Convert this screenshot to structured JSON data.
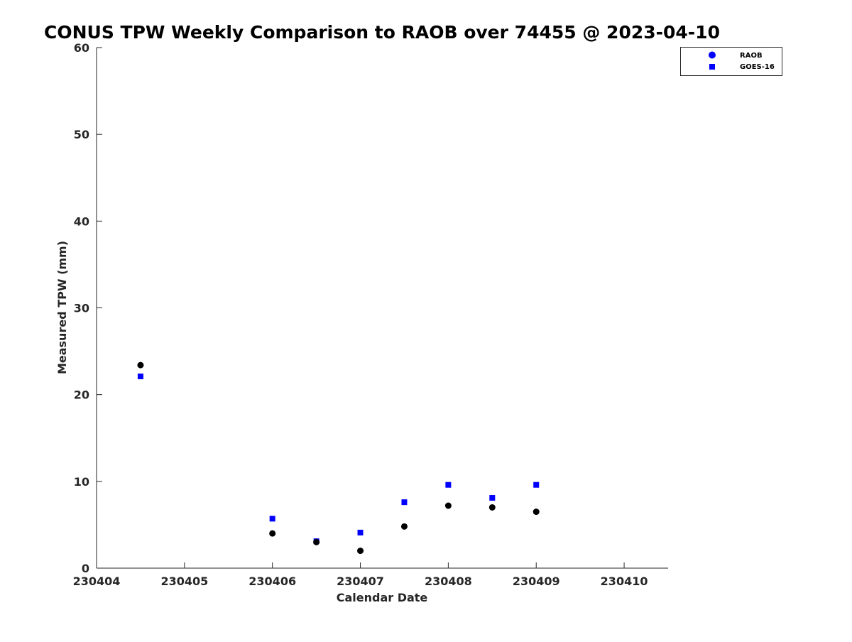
{
  "chart_data": {
    "type": "scatter",
    "title": "CONUS TPW Weekly Comparison to RAOB over 74455 @ 2023-04-10",
    "xlabel": "Calendar Date",
    "ylabel": "Measured TPW (mm)",
    "xlim": [
      "2023-04-04 00:00",
      "2023-04-10 12:00"
    ],
    "ylim": [
      0,
      60
    ],
    "xticks": [
      "2023-04-04",
      "2023-04-05",
      "2023-04-06",
      "2023-04-07",
      "2023-04-08",
      "2023-04-09",
      "2023-04-10"
    ],
    "xtick_labels": [
      "230404",
      "230405",
      "230406",
      "230407",
      "230408",
      "230409",
      "230410"
    ],
    "yticks": [
      0,
      10,
      20,
      30,
      40,
      50,
      60
    ],
    "ytick_labels": [
      "0",
      "10",
      "20",
      "30",
      "40",
      "50",
      "60"
    ],
    "grid": false,
    "legend_position": "top-right",
    "legend": [
      "RAOB",
      "GOES-16"
    ],
    "series": [
      {
        "name": "RAOB",
        "marker": "circle",
        "color": "#000000",
        "legend_color": "#0000ff",
        "points": [
          {
            "x": "2023-04-04 12:00",
            "y": 23.4
          },
          {
            "x": "2023-04-06 00:00",
            "y": 4.0
          },
          {
            "x": "2023-04-06 12:00",
            "y": 3.0
          },
          {
            "x": "2023-04-07 00:00",
            "y": 2.0
          },
          {
            "x": "2023-04-07 12:00",
            "y": 4.8
          },
          {
            "x": "2023-04-08 00:00",
            "y": 7.2
          },
          {
            "x": "2023-04-08 12:00",
            "y": 7.0
          },
          {
            "x": "2023-04-09 00:00",
            "y": 6.5
          }
        ]
      },
      {
        "name": "GOES-16",
        "marker": "square",
        "color": "#0000ff",
        "legend_color": "#0000ff",
        "points": [
          {
            "x": "2023-04-04 12:00",
            "y": 22.1
          },
          {
            "x": "2023-04-06 00:00",
            "y": 5.7
          },
          {
            "x": "2023-04-06 12:00",
            "y": 3.1
          },
          {
            "x": "2023-04-07 00:00",
            "y": 4.1
          },
          {
            "x": "2023-04-07 12:00",
            "y": 7.6
          },
          {
            "x": "2023-04-08 00:00",
            "y": 9.6
          },
          {
            "x": "2023-04-08 12:00",
            "y": 8.1
          },
          {
            "x": "2023-04-09 00:00",
            "y": 9.6
          }
        ]
      }
    ]
  }
}
